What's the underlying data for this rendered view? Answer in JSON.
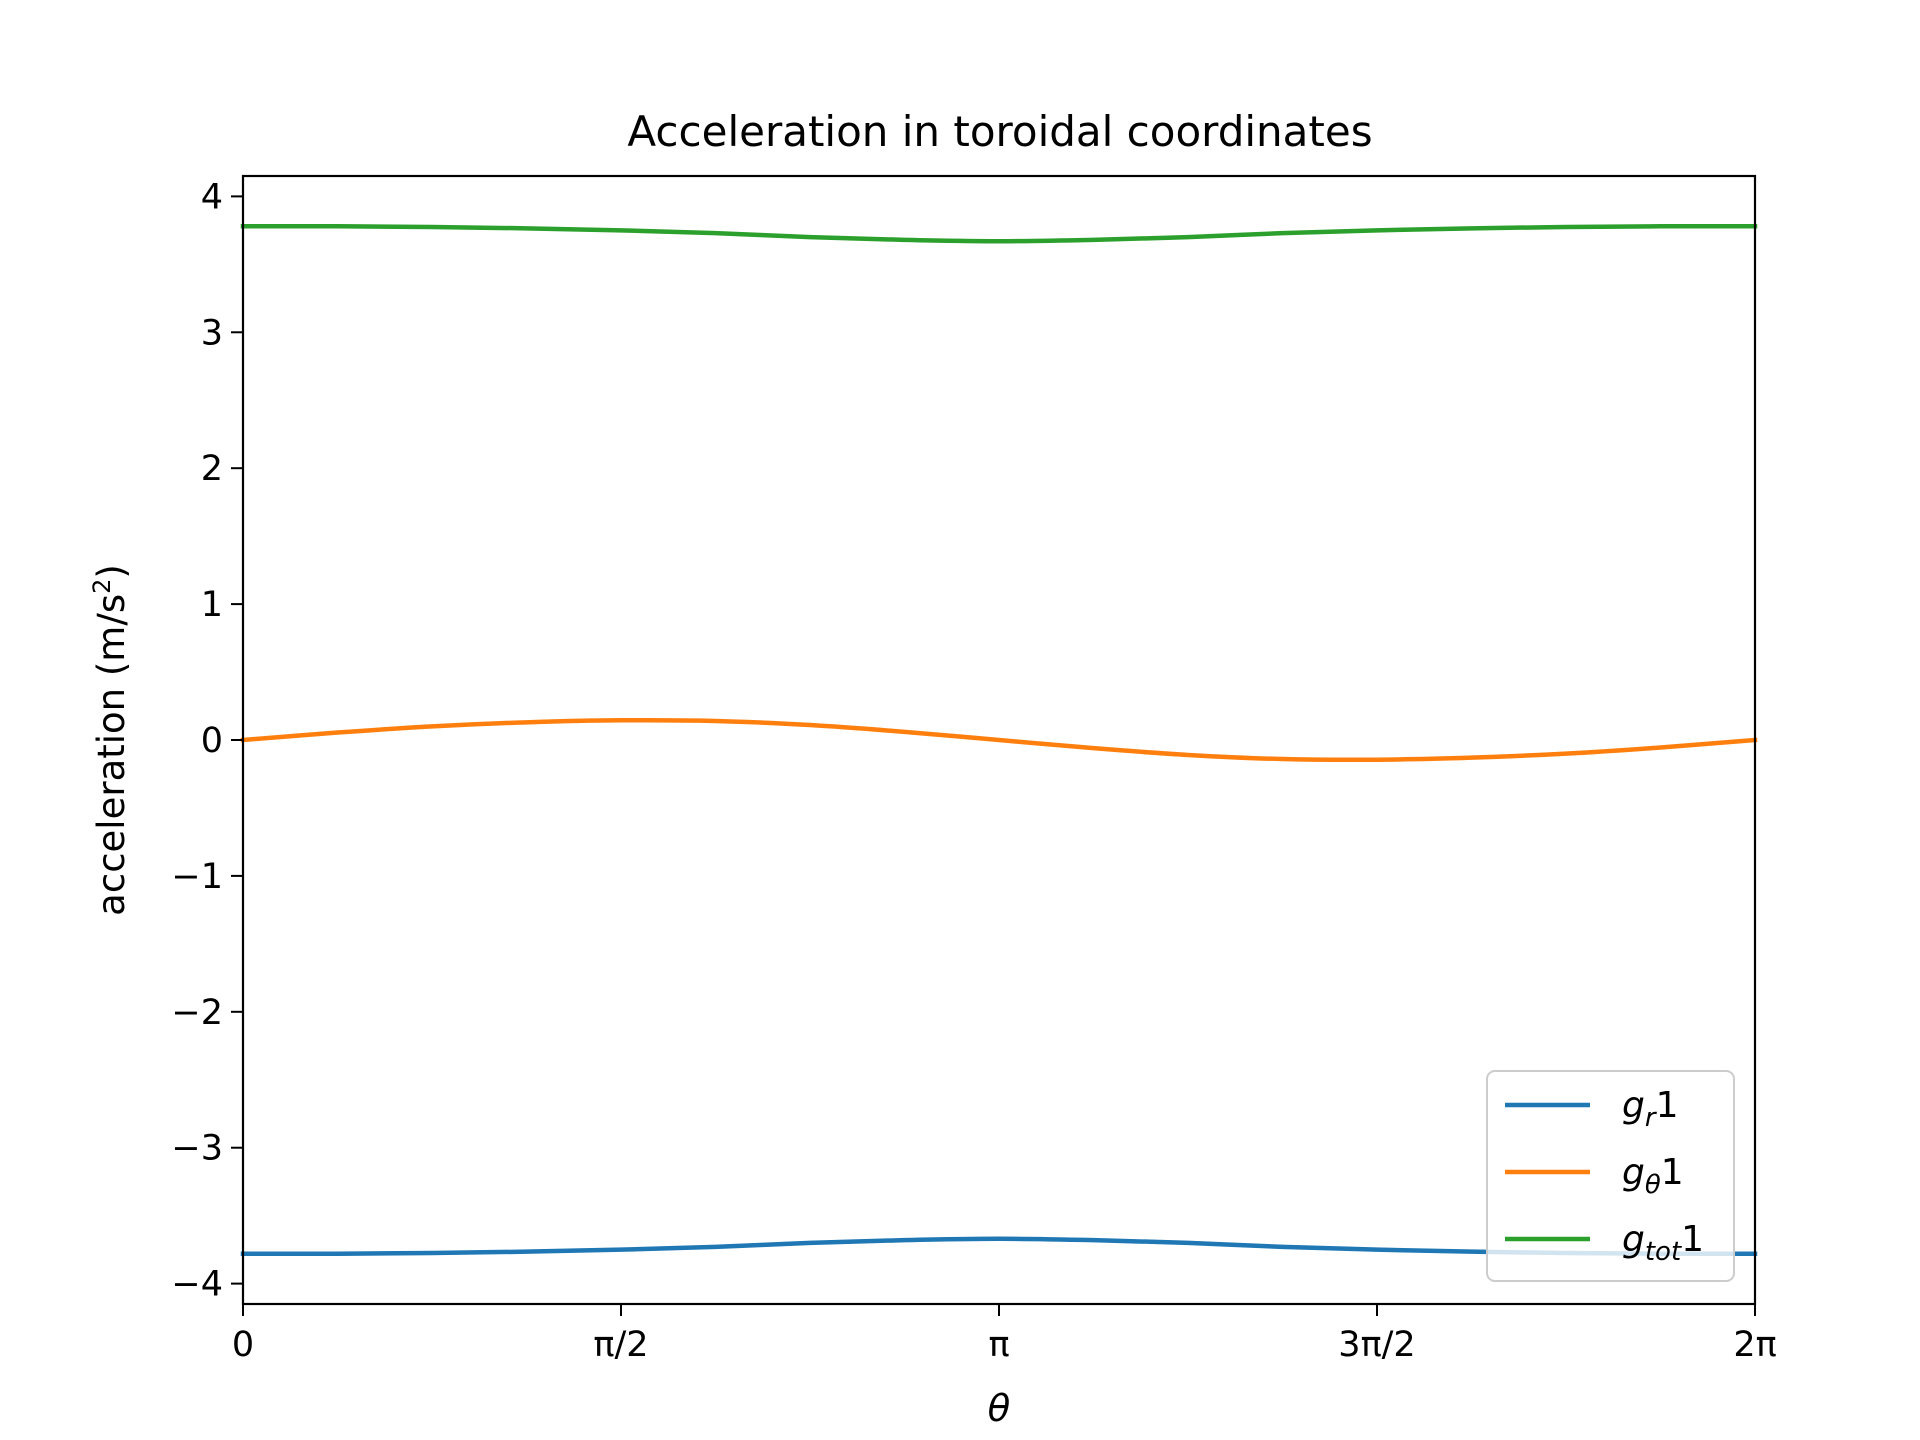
{
  "chart_data": {
    "type": "line",
    "title": "Acceleration in toroidal coordinates",
    "xlabel": "θ",
    "ylabel_main": "acceleration (m/s",
    "ylabel_sup": "2",
    "ylabel_close": ")",
    "xlim": [
      0,
      6.283185
    ],
    "ylim": [
      -4.15,
      4.15
    ],
    "grid": false,
    "legend_position": "lower right",
    "x_ticks": [
      {
        "value": 0,
        "label": "0"
      },
      {
        "value": 1.570796,
        "label": "π/2"
      },
      {
        "value": 3.141593,
        "label": "π"
      },
      {
        "value": 4.712389,
        "label": "3π/2"
      },
      {
        "value": 6.283185,
        "label": "2π"
      }
    ],
    "y_ticks": [
      {
        "value": 4,
        "label": "4"
      },
      {
        "value": 3,
        "label": "3"
      },
      {
        "value": 2,
        "label": "2"
      },
      {
        "value": 1,
        "label": "1"
      },
      {
        "value": 0,
        "label": "0"
      },
      {
        "value": -1,
        "label": "−1"
      },
      {
        "value": -2,
        "label": "−2"
      },
      {
        "value": -3,
        "label": "−3"
      },
      {
        "value": -4,
        "label": "−4"
      }
    ],
    "x": [
      0,
      0.3927,
      0.7854,
      1.1781,
      1.5708,
      1.9635,
      2.3562,
      2.7489,
      3.1416,
      3.5343,
      3.927,
      4.3197,
      4.7124,
      5.1051,
      5.4978,
      5.8905,
      6.2832
    ],
    "series": [
      {
        "name_main": "g",
        "name_sub": "r",
        "name_tail": "1",
        "color": "#1f77b4",
        "values": [
          -3.78,
          -3.78,
          -3.775,
          -3.765,
          -3.75,
          -3.73,
          -3.7,
          -3.68,
          -3.67,
          -3.68,
          -3.7,
          -3.73,
          -3.75,
          -3.765,
          -3.775,
          -3.78,
          -3.78
        ]
      },
      {
        "name_main": "g",
        "name_sub": "θ",
        "name_tail": "1",
        "color": "#ff7f0e",
        "values": [
          0.0,
          0.055,
          0.1,
          0.13,
          0.145,
          0.14,
          0.11,
          0.06,
          0.0,
          -0.06,
          -0.11,
          -0.14,
          -0.145,
          -0.13,
          -0.1,
          -0.055,
          0.0
        ]
      },
      {
        "name_main": "g",
        "name_sub": "tot",
        "name_tail": "1",
        "color": "#2ca02c",
        "values": [
          3.78,
          3.78,
          3.775,
          3.765,
          3.75,
          3.73,
          3.7,
          3.68,
          3.67,
          3.68,
          3.7,
          3.73,
          3.75,
          3.765,
          3.775,
          3.78,
          3.78
        ]
      }
    ]
  }
}
